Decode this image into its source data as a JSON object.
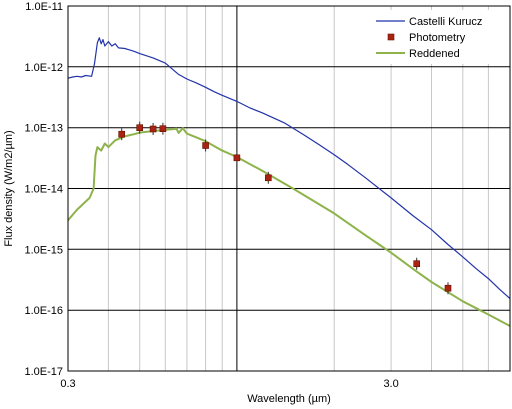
{
  "chart_data": {
    "type": "line",
    "xscale": "log",
    "yscale": "log",
    "xlim": [
      0.3,
      7.0
    ],
    "ylim": [
      1e-17,
      1e-11
    ],
    "xlabel": "Wavelength (µm)",
    "ylabel": "Flux density (W/m2/µm)",
    "x_ticks": [
      {
        "value": 0.3,
        "label": "0.3"
      },
      {
        "value": 3.0,
        "label": "3.0"
      }
    ],
    "y_ticks": [
      {
        "value": 1e-11,
        "label": "1.0E-11"
      },
      {
        "value": 1e-12,
        "label": "1.0E-12"
      },
      {
        "value": 1e-13,
        "label": "1.0E-13"
      },
      {
        "value": 1e-14,
        "label": "1.0E-14"
      },
      {
        "value": 1e-15,
        "label": "1.0E-15"
      },
      {
        "value": 1e-16,
        "label": "1.0E-16"
      },
      {
        "value": 1e-17,
        "label": "1.0E-17"
      }
    ],
    "grid": true,
    "legend_position": "top-right",
    "series": [
      {
        "name": "Castelli Kurucz",
        "kind": "line",
        "color": "#2233aa",
        "points": [
          [
            0.3,
            6.5e-13
          ],
          [
            0.31,
            6.8e-13
          ],
          [
            0.32,
            7e-13
          ],
          [
            0.33,
            6.8e-13
          ],
          [
            0.34,
            7.2e-13
          ],
          [
            0.355,
            7e-13
          ],
          [
            0.362,
            1.1e-12
          ],
          [
            0.37,
            2.5e-12
          ],
          [
            0.375,
            3e-12
          ],
          [
            0.38,
            2.4e-12
          ],
          [
            0.385,
            2.8e-12
          ],
          [
            0.39,
            2.2e-12
          ],
          [
            0.4,
            2.6e-12
          ],
          [
            0.41,
            2.2e-12
          ],
          [
            0.42,
            2.4e-12
          ],
          [
            0.43,
            2.05e-12
          ],
          [
            0.45,
            2e-12
          ],
          [
            0.48,
            1.8e-12
          ],
          [
            0.5,
            1.65e-12
          ],
          [
            0.55,
            1.4e-12
          ],
          [
            0.6,
            1.15e-12
          ],
          [
            0.66,
            7.5e-13
          ],
          [
            0.7,
            6.3e-13
          ],
          [
            0.75,
            5.4e-13
          ],
          [
            0.8,
            4.6e-13
          ],
          [
            0.85,
            3.9e-13
          ],
          [
            0.9,
            3.4e-13
          ],
          [
            1.0,
            2.7e-13
          ],
          [
            1.1,
            2.1e-13
          ],
          [
            1.2,
            1.75e-13
          ],
          [
            1.4,
            1.2e-13
          ],
          [
            1.6,
            7.8e-14
          ],
          [
            1.8,
            5.2e-14
          ],
          [
            2.0,
            3.6e-14
          ],
          [
            2.2,
            2.5e-14
          ],
          [
            2.5,
            1.5e-14
          ],
          [
            3.0,
            7e-15
          ],
          [
            3.5,
            3.6e-15
          ],
          [
            4.0,
            2.1e-15
          ],
          [
            4.5,
            1.2e-15
          ],
          [
            5.0,
            7.5e-16
          ],
          [
            5.5,
            4.8e-16
          ],
          [
            6.0,
            3.3e-16
          ],
          [
            6.5,
            2.2e-16
          ],
          [
            7.0,
            1.55e-16
          ]
        ]
      },
      {
        "name": "Photometry",
        "kind": "markers",
        "color": "#aa2211",
        "points": [
          [
            0.44,
            7.8e-14
          ],
          [
            0.5,
            1e-13
          ],
          [
            0.55,
            9.5e-14
          ],
          [
            0.59,
            9.6e-14
          ],
          [
            0.8,
            5.1e-14
          ],
          [
            1.0,
            3.2e-14
          ],
          [
            1.25,
            1.5e-14
          ],
          [
            3.6,
            5.8e-16
          ],
          [
            4.5,
            2.3e-16
          ]
        ]
      },
      {
        "name": "Reddened",
        "kind": "line",
        "color": "#8db34a",
        "points": [
          [
            0.3,
            3e-15
          ],
          [
            0.32,
            4.5e-15
          ],
          [
            0.35,
            7e-15
          ],
          [
            0.36,
            1e-14
          ],
          [
            0.365,
            3.5e-14
          ],
          [
            0.37,
            4.8e-14
          ],
          [
            0.38,
            4.2e-14
          ],
          [
            0.39,
            5.5e-14
          ],
          [
            0.4,
            4.8e-14
          ],
          [
            0.42,
            6.2e-14
          ],
          [
            0.45,
            7.2e-14
          ],
          [
            0.48,
            7.8e-14
          ],
          [
            0.5,
            8.3e-14
          ],
          [
            0.55,
            8.8e-14
          ],
          [
            0.6,
            9.2e-14
          ],
          [
            0.65,
            9.6e-14
          ],
          [
            0.66,
            8.2e-14
          ],
          [
            0.68,
            9.8e-14
          ],
          [
            0.7,
            8e-14
          ],
          [
            0.8,
            6e-14
          ],
          [
            0.9,
            4.2e-14
          ],
          [
            1.0,
            3.3e-14
          ],
          [
            1.2,
            1.95e-14
          ],
          [
            1.5,
            9.8e-15
          ],
          [
            2.0,
            3.9e-15
          ],
          [
            2.5,
            1.7e-15
          ],
          [
            3.0,
            8.8e-16
          ],
          [
            3.6,
            4.3e-16
          ],
          [
            4.0,
            2.9e-16
          ],
          [
            5.0,
            1.4e-16
          ],
          [
            6.0,
            8.5e-17
          ],
          [
            7.0,
            5.5e-17
          ]
        ]
      }
    ]
  }
}
